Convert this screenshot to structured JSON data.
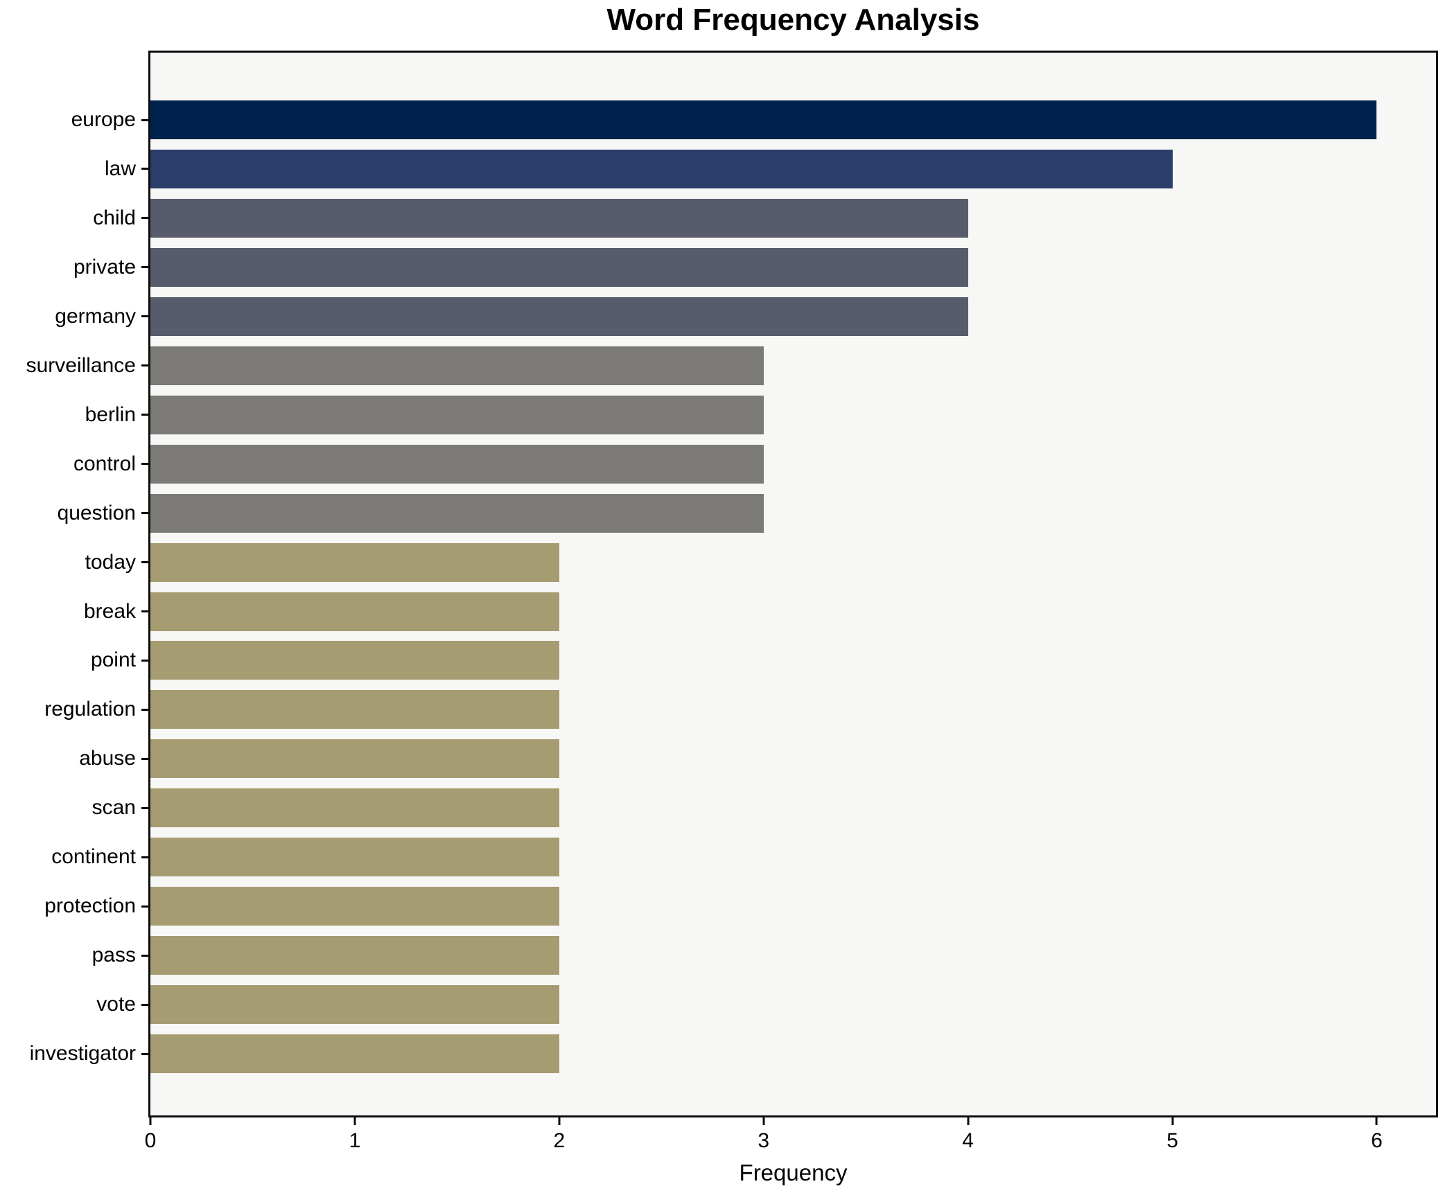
{
  "page": {
    "background": "#ffffff"
  },
  "chart_data": {
    "type": "bar",
    "orientation": "horizontal",
    "title": "Word Frequency Analysis",
    "xlabel": "Frequency",
    "ylabel": "",
    "categories": [
      "europe",
      "law",
      "child",
      "private",
      "germany",
      "surveillance",
      "berlin",
      "control",
      "question",
      "today",
      "break",
      "point",
      "regulation",
      "abuse",
      "scan",
      "continent",
      "protection",
      "pass",
      "vote",
      "investigator"
    ],
    "values": [
      6,
      5,
      4,
      4,
      4,
      3,
      3,
      3,
      3,
      2,
      2,
      2,
      2,
      2,
      2,
      2,
      2,
      2,
      2,
      2
    ],
    "xticks": [
      0,
      1,
      2,
      3,
      4,
      5,
      6
    ],
    "xlim": [
      0,
      6.29
    ],
    "grid": false,
    "legend": null,
    "plot_background": "#f7f7f5",
    "spine_color": "#0d0d0d",
    "text_color": "#000000",
    "color_by_value": {
      "6": "#00224e",
      "5": "#2b3e6b",
      "4": "#565c6b",
      "3": "#7b7a76",
      "2": "#a69c72"
    }
  }
}
